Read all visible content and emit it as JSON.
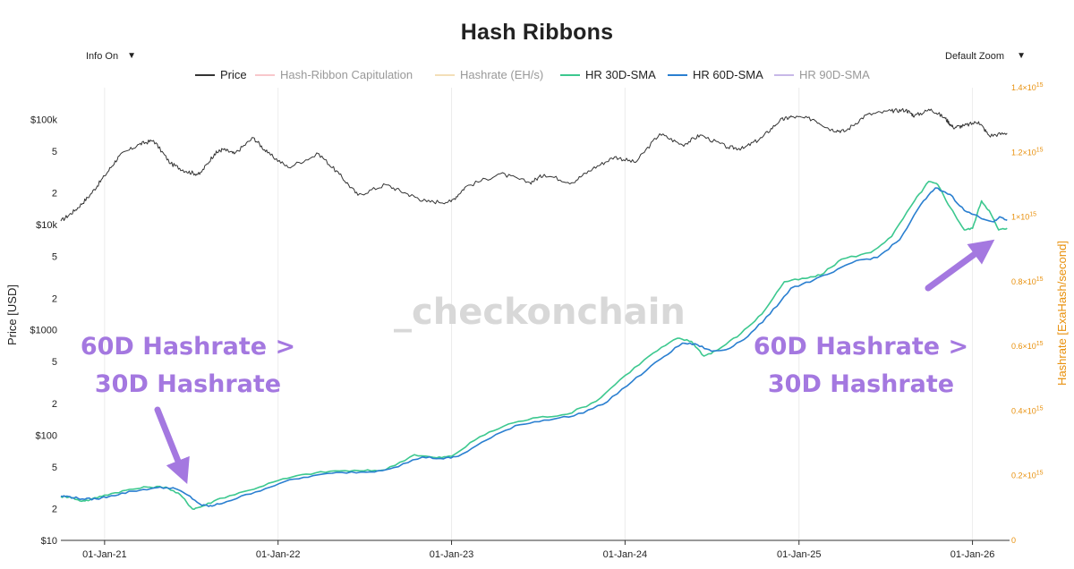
{
  "title": "Hash Ribbons",
  "controls": {
    "info_select": {
      "value": "Info On"
    },
    "zoom_select": {
      "value": "Default Zoom"
    }
  },
  "legend": [
    {
      "label": "Price",
      "color": "#333333",
      "active": true
    },
    {
      "label": "Hash-Ribbon Capitulation",
      "color": "#f8c8cc",
      "active": false
    },
    {
      "label": "Hashrate (EH/s)",
      "color": "#f3dfb8",
      "active": false
    },
    {
      "label": "HR 30D-SMA",
      "color": "#3cc88f",
      "active": true
    },
    {
      "label": "HR 60D-SMA",
      "color": "#2a7fd0",
      "active": true
    },
    {
      "label": "HR 90D-SMA",
      "color": "#c8b8e8",
      "active": false
    }
  ],
  "watermark": "_checkonchain",
  "annotations": [
    {
      "lines": [
        "60D Hashrate >",
        "30D Hashrate"
      ],
      "color": "#a478e0"
    },
    {
      "lines": [
        "60D Hashrate >",
        "30D Hashrate"
      ],
      "color": "#a478e0"
    }
  ],
  "chart_data": {
    "type": "line",
    "x_range": [
      "2020-10-01",
      "2026-03-20"
    ],
    "x_ticks": [
      "01-Jan-21",
      "01-Jan-22",
      "01-Jan-23",
      "01-Jan-24",
      "01-Jan-25",
      "01-Jan-26"
    ],
    "y_left": {
      "label": "Price [USD]",
      "scale": "log",
      "range": [
        10,
        200000
      ],
      "ticks": [
        {
          "v": 10,
          "t": "$10"
        },
        {
          "v": 20,
          "t": "2"
        },
        {
          "v": 50,
          "t": "5"
        },
        {
          "v": 100,
          "t": "$100"
        },
        {
          "v": 200,
          "t": "2"
        },
        {
          "v": 500,
          "t": "5"
        },
        {
          "v": 1000,
          "t": "$1000"
        },
        {
          "v": 2000,
          "t": "2"
        },
        {
          "v": 5000,
          "t": "5"
        },
        {
          "v": 10000,
          "t": "$10k"
        },
        {
          "v": 20000,
          "t": "2"
        },
        {
          "v": 50000,
          "t": "5"
        },
        {
          "v": 100000,
          "t": "$100k"
        }
      ]
    },
    "y_right": {
      "label": "Hashrate [ExaHash/second]",
      "scale": "linear",
      "range": [
        0,
        1.4
      ],
      "unit_exp": "15",
      "ticks": [
        {
          "v": 0,
          "t": "0"
        },
        {
          "v": 0.2,
          "t": "0.2×10"
        },
        {
          "v": 0.4,
          "t": "0.4×10"
        },
        {
          "v": 0.6,
          "t": "0.6×10"
        },
        {
          "v": 0.8,
          "t": "0.8×10"
        },
        {
          "v": 1.0,
          "t": "1×10"
        },
        {
          "v": 1.2,
          "t": "1.2×10"
        },
        {
          "v": 1.4,
          "t": "1.4×10"
        }
      ]
    },
    "series": [
      {
        "name": "Price",
        "axis": "left",
        "color": "#333333",
        "points": [
          [
            "2020-10-01",
            10800
          ],
          [
            "2020-11-01",
            13800
          ],
          [
            "2020-12-01",
            19000
          ],
          [
            "2021-01-01",
            29000
          ],
          [
            "2021-02-01",
            45000
          ],
          [
            "2021-03-15",
            58000
          ],
          [
            "2021-04-14",
            63000
          ],
          [
            "2021-05-20",
            38000
          ],
          [
            "2021-06-22",
            32000
          ],
          [
            "2021-07-20",
            30000
          ],
          [
            "2021-08-20",
            47000
          ],
          [
            "2021-09-07",
            52000
          ],
          [
            "2021-10-01",
            47000
          ],
          [
            "2021-11-10",
            67000
          ],
          [
            "2021-12-10",
            48000
          ],
          [
            "2022-01-22",
            35000
          ],
          [
            "2022-03-28",
            47000
          ],
          [
            "2022-05-10",
            30000
          ],
          [
            "2022-06-18",
            19000
          ],
          [
            "2022-08-15",
            24000
          ],
          [
            "2022-10-01",
            19500
          ],
          [
            "2022-11-10",
            16500
          ],
          [
            "2022-12-31",
            16500
          ],
          [
            "2023-01-31",
            23000
          ],
          [
            "2023-04-14",
            30500
          ],
          [
            "2023-06-15",
            25000
          ],
          [
            "2023-07-15",
            30000
          ],
          [
            "2023-09-11",
            25000
          ],
          [
            "2023-10-25",
            34000
          ],
          [
            "2023-12-10",
            44000
          ],
          [
            "2024-01-23",
            39000
          ],
          [
            "2024-03-14",
            73000
          ],
          [
            "2024-05-01",
            57000
          ],
          [
            "2024-06-07",
            71000
          ],
          [
            "2024-08-05",
            54000
          ],
          [
            "2024-09-06",
            53000
          ],
          [
            "2024-10-15",
            67000
          ],
          [
            "2024-11-22",
            98000
          ],
          [
            "2024-12-17",
            106000
          ],
          [
            "2025-02-01",
            100000
          ],
          [
            "2025-03-10",
            80000
          ],
          [
            "2025-04-08",
            77000
          ],
          [
            "2025-05-22",
            110000
          ],
          [
            "2025-07-14",
            120000
          ],
          [
            "2025-08-14",
            123000
          ],
          [
            "2025-09-01",
            108000
          ],
          [
            "2025-10-06",
            125000
          ],
          [
            "2025-11-05",
            102000
          ],
          [
            "2025-11-21",
            84000
          ],
          [
            "2025-12-15",
            87000
          ],
          [
            "2026-01-14",
            95000
          ],
          [
            "2026-02-05",
            70000
          ],
          [
            "2026-03-15",
            74000
          ]
        ]
      },
      {
        "name": "HR 30D-SMA",
        "axis": "right",
        "color": "#3cc88f",
        "points": [
          [
            "2020-10-01",
            0.135
          ],
          [
            "2020-10-20",
            0.135
          ],
          [
            "2020-11-10",
            0.122
          ],
          [
            "2020-12-01",
            0.125
          ],
          [
            "2021-01-01",
            0.14
          ],
          [
            "2021-02-15",
            0.155
          ],
          [
            "2021-04-01",
            0.165
          ],
          [
            "2021-05-10",
            0.165
          ],
          [
            "2021-06-10",
            0.14
          ],
          [
            "2021-07-05",
            0.097
          ],
          [
            "2021-07-25",
            0.105
          ],
          [
            "2021-09-01",
            0.13
          ],
          [
            "2021-11-01",
            0.155
          ],
          [
            "2022-01-01",
            0.185
          ],
          [
            "2022-03-01",
            0.205
          ],
          [
            "2022-05-01",
            0.215
          ],
          [
            "2022-07-01",
            0.215
          ],
          [
            "2022-08-15",
            0.218
          ],
          [
            "2022-10-15",
            0.265
          ],
          [
            "2022-12-01",
            0.255
          ],
          [
            "2023-01-01",
            0.26
          ],
          [
            "2023-03-01",
            0.32
          ],
          [
            "2023-05-01",
            0.36
          ],
          [
            "2023-07-01",
            0.38
          ],
          [
            "2023-09-01",
            0.39
          ],
          [
            "2023-11-01",
            0.43
          ],
          [
            "2024-01-01",
            0.51
          ],
          [
            "2024-03-01",
            0.58
          ],
          [
            "2024-04-20",
            0.625
          ],
          [
            "2024-05-20",
            0.615
          ],
          [
            "2024-06-15",
            0.57
          ],
          [
            "2024-07-15",
            0.59
          ],
          [
            "2024-09-01",
            0.64
          ],
          [
            "2024-10-15",
            0.7
          ],
          [
            "2024-12-01",
            0.8
          ],
          [
            "2025-01-15",
            0.81
          ],
          [
            "2025-02-15",
            0.82
          ],
          [
            "2025-04-01",
            0.87
          ],
          [
            "2025-06-01",
            0.89
          ],
          [
            "2025-07-15",
            0.94
          ],
          [
            "2025-09-01",
            1.05
          ],
          [
            "2025-10-01",
            1.11
          ],
          [
            "2025-10-20",
            1.1
          ],
          [
            "2025-11-15",
            1.03
          ],
          [
            "2025-12-15",
            0.96
          ],
          [
            "2026-01-01",
            0.965
          ],
          [
            "2026-01-20",
            1.05
          ],
          [
            "2026-02-05",
            1.02
          ],
          [
            "2026-02-25",
            0.96
          ],
          [
            "2026-03-15",
            0.965
          ]
        ]
      },
      {
        "name": "HR 60D-SMA",
        "axis": "right",
        "color": "#2a7fd0",
        "points": [
          [
            "2020-10-01",
            0.137
          ],
          [
            "2020-10-20",
            0.135
          ],
          [
            "2020-11-15",
            0.128
          ],
          [
            "2020-12-15",
            0.128
          ],
          [
            "2021-01-15",
            0.138
          ],
          [
            "2021-03-01",
            0.152
          ],
          [
            "2021-04-15",
            0.162
          ],
          [
            "2021-05-25",
            0.163
          ],
          [
            "2021-06-25",
            0.14
          ],
          [
            "2021-07-25",
            0.108
          ],
          [
            "2021-08-15",
            0.106
          ],
          [
            "2021-09-15",
            0.12
          ],
          [
            "2021-11-15",
            0.15
          ],
          [
            "2022-01-15",
            0.182
          ],
          [
            "2022-03-15",
            0.2
          ],
          [
            "2022-05-15",
            0.21
          ],
          [
            "2022-07-15",
            0.212
          ],
          [
            "2022-09-01",
            0.225
          ],
          [
            "2022-11-01",
            0.258
          ],
          [
            "2022-12-15",
            0.252
          ],
          [
            "2023-01-15",
            0.26
          ],
          [
            "2023-03-15",
            0.31
          ],
          [
            "2023-05-15",
            0.355
          ],
          [
            "2023-07-15",
            0.372
          ],
          [
            "2023-09-15",
            0.385
          ],
          [
            "2023-11-15",
            0.42
          ],
          [
            "2024-01-15",
            0.49
          ],
          [
            "2024-03-15",
            0.56
          ],
          [
            "2024-05-01",
            0.61
          ],
          [
            "2024-06-01",
            0.605
          ],
          [
            "2024-07-01",
            0.585
          ],
          [
            "2024-08-01",
            0.59
          ],
          [
            "2024-09-15",
            0.63
          ],
          [
            "2024-11-01",
            0.7
          ],
          [
            "2024-12-15",
            0.78
          ],
          [
            "2025-02-01",
            0.805
          ],
          [
            "2025-03-15",
            0.83
          ],
          [
            "2025-05-01",
            0.865
          ],
          [
            "2025-06-15",
            0.875
          ],
          [
            "2025-08-01",
            0.93
          ],
          [
            "2025-09-15",
            1.04
          ],
          [
            "2025-10-15",
            1.09
          ],
          [
            "2025-11-15",
            1.07
          ],
          [
            "2025-12-15",
            1.02
          ],
          [
            "2026-01-15",
            1.0
          ],
          [
            "2026-02-15",
            0.985
          ],
          [
            "2026-03-01",
            1.0
          ],
          [
            "2026-03-15",
            0.99
          ]
        ]
      }
    ]
  }
}
